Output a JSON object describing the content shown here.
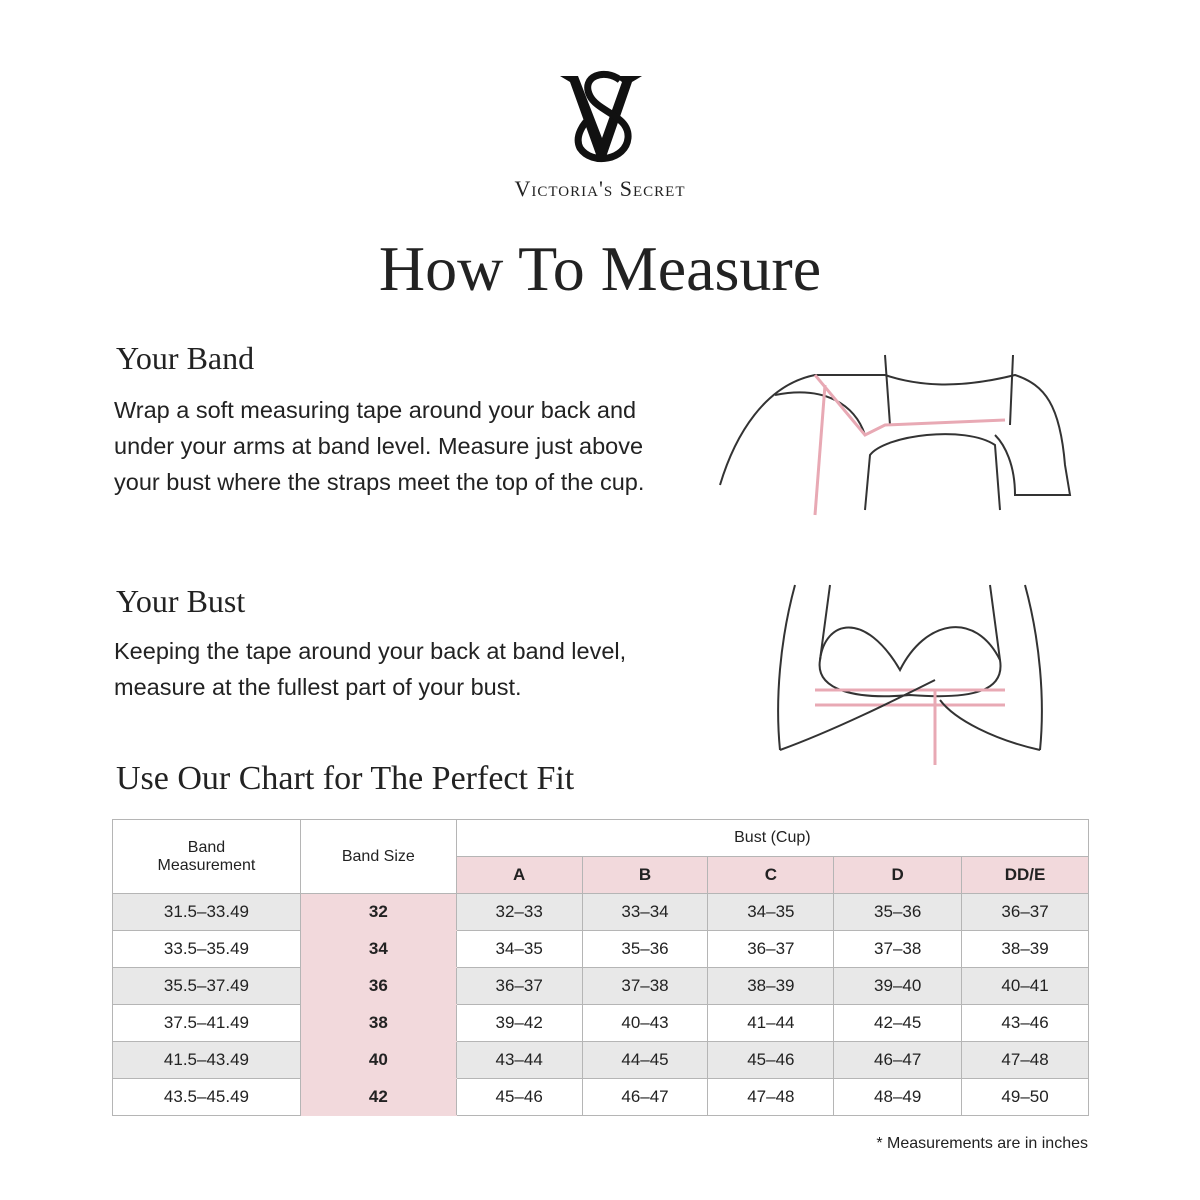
{
  "brand": {
    "logo_letters": "VS",
    "name": "Victoria's Secret"
  },
  "title": "How To Measure",
  "band": {
    "heading": "Your Band",
    "text": "Wrap a soft measuring tape around your back and under your arms at band level.  Measure just above your bust where the straps meet the top of the cup."
  },
  "bust": {
    "heading": "Your Bust",
    "text": "Keeping the tape around your back at band level, measure at the fullest part of your bust."
  },
  "chart_heading": "Use Our Chart for The Perfect Fit",
  "colors": {
    "pink": "#f2d9dc",
    "gray": "#e8e8e8",
    "tape": "#e8a9b4"
  },
  "table": {
    "col_band_measurement": "Band Measurement",
    "col_band_size": "Band Size",
    "col_bust": "Bust (Cup)",
    "cups": [
      "A",
      "B",
      "C",
      "D",
      "DD/E"
    ],
    "rows": [
      {
        "measure": "31.5–33.49",
        "size": "32",
        "cups": [
          "32–33",
          "33–34",
          "34–35",
          "35–36",
          "36–37"
        ]
      },
      {
        "measure": "33.5–35.49",
        "size": "34",
        "cups": [
          "34–35",
          "35–36",
          "36–37",
          "37–38",
          "38–39"
        ]
      },
      {
        "measure": "35.5–37.49",
        "size": "36",
        "cups": [
          "36–37",
          "37–38",
          "38–39",
          "39–40",
          "40–41"
        ]
      },
      {
        "measure": "37.5–41.49",
        "size": "38",
        "cups": [
          "39–42",
          "40–43",
          "41–44",
          "42–45",
          "43–46"
        ]
      },
      {
        "measure": "41.5–43.49",
        "size": "40",
        "cups": [
          "43–44",
          "44–45",
          "45–46",
          "46–47",
          "47–48"
        ]
      },
      {
        "measure": "43.5–45.49",
        "size": "42",
        "cups": [
          "45–46",
          "46–47",
          "47–48",
          "48–49",
          "49–50"
        ]
      }
    ]
  },
  "note": "* Measurements are in inches"
}
